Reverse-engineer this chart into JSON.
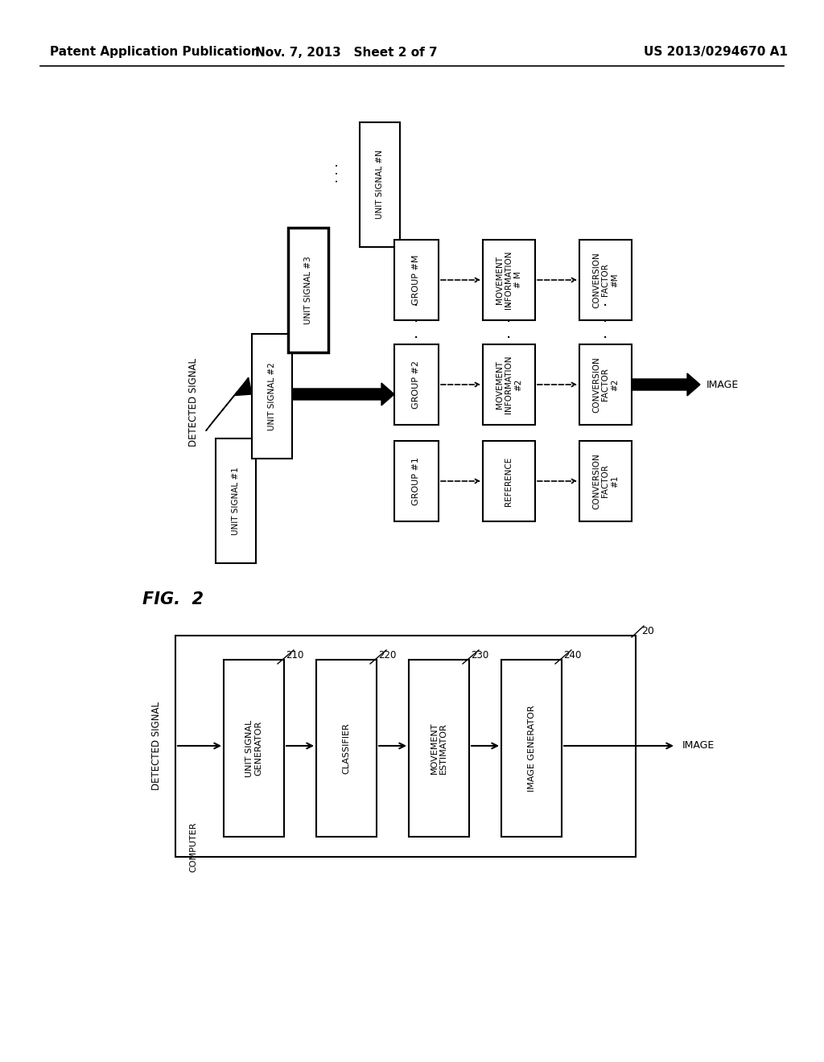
{
  "bg_color": "#ffffff",
  "header_left": "Patent Application Publication",
  "header_mid": "Nov. 7, 2013   Sheet 2 of 7",
  "header_right": "US 2013/0294670 A1",
  "fig_label": "FIG.  2",
  "top_diagram": {
    "detected_signal_label": "DETECTED SIGNAL",
    "unit_signals": [
      "UNIT SIGNAL #1",
      "UNIT SIGNAL #2",
      "UNIT SIGNAL #3",
      "UNIT SIGNAL #N"
    ],
    "groups": [
      "GROUP #1",
      "GROUP #2",
      "GROUP #M"
    ],
    "col3_labels": [
      "REFERENCE",
      "MOVEMENT\nINFORMATION\n#2",
      "MOVEMENT\nINFORMATION\n# M"
    ],
    "col4_labels": [
      "CONVERSION\nFACTOR\n#1",
      "CONVERSION\nFACTOR\n#2",
      "CONVERSION\nFACTOR\n#M"
    ],
    "image_label": "IMAGE"
  },
  "bottom_diagram": {
    "number_label": "20",
    "detected_signal_label": "DETECTED SIGNAL",
    "image_label": "IMAGE",
    "blocks": [
      {
        "label": "UNIT SIGNAL\nGENERATOR",
        "number": "210"
      },
      {
        "label": "CLASSIFIER",
        "number": "220"
      },
      {
        "label": "MOVEMENT\nESTIMATOR",
        "number": "230"
      },
      {
        "label": "IMAGE GENERATOR",
        "number": "240"
      }
    ],
    "computer_text": "COMPUTER"
  }
}
